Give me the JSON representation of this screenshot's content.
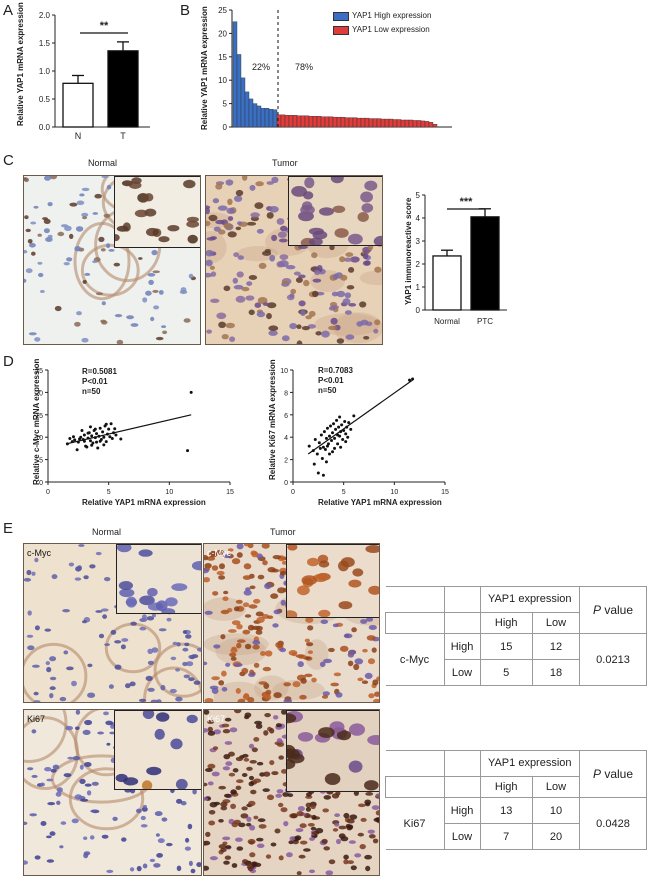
{
  "panels": {
    "A": "A",
    "B": "B",
    "C": "C",
    "D": "D",
    "E": "E"
  },
  "panelA": {
    "ylabel": "Relative YAP1 mRNA expression",
    "sig": "**",
    "chart_data": {
      "type": "bar",
      "categories": [
        "N",
        "T"
      ],
      "values": [
        0.78,
        1.36
      ],
      "errors": [
        0.14,
        0.16
      ],
      "colors": [
        "#ffffff",
        "#000000"
      ],
      "ylim": [
        0,
        2.0
      ],
      "yticks": [
        "0.0",
        "0.5",
        "1.0",
        "1.5",
        "2.0"
      ]
    }
  },
  "panelB": {
    "ylabel": "Relative YAP1 mRNA expression",
    "pct_high": "22%",
    "pct_low": "78%",
    "legend_high": "YAP1 High expression",
    "legend_low": "YAP1 Low expression",
    "high_color": "#3a6fc4",
    "low_color": "#e03c3c",
    "chart_data": {
      "type": "bar",
      "ylim": [
        0,
        25
      ],
      "yticks": [
        "0",
        "5",
        "10",
        "15",
        "20",
        "25"
      ],
      "high_values": [
        22.5,
        15.5,
        10.5,
        7.5,
        6,
        5,
        4.5,
        4,
        4,
        3.8,
        3.7
      ],
      "low_values": [
        2.6,
        2.6,
        2.5,
        2.5,
        2.5,
        2.4,
        2.4,
        2.4,
        2.3,
        2.3,
        2.3,
        2.2,
        2.2,
        2.2,
        2.1,
        2.1,
        2.1,
        2.0,
        2.0,
        2.0,
        1.9,
        1.9,
        1.9,
        1.8,
        1.8,
        1.8,
        1.7,
        1.7,
        1.7,
        1.6,
        1.6,
        1.5,
        1.5,
        1.5,
        1.4,
        1.4,
        1.3,
        1.2,
        1.0,
        0.6
      ]
    }
  },
  "panelC": {
    "normal_label": "Normal",
    "tumor_label": "Tumor",
    "ylabel": "YAP1 immunoreactive score",
    "sig": "***",
    "chart_data": {
      "type": "bar",
      "categories": [
        "Normal",
        "PTC"
      ],
      "values": [
        2.35,
        4.05
      ],
      "errors": [
        0.25,
        0.35
      ],
      "colors": [
        "#ffffff",
        "#000000"
      ],
      "ylim": [
        0,
        5
      ],
      "yticks": [
        "0",
        "1",
        "2",
        "3",
        "4",
        "5"
      ]
    }
  },
  "panelD1": {
    "ylabel": "Relative c-Myc mRNA expression",
    "xlabel": "Relative YAP1 mRNA expression",
    "stats": [
      "R=0.5081",
      "P<0.01",
      "n=50"
    ],
    "chart_data": {
      "type": "scatter",
      "xlim": [
        0,
        15
      ],
      "ylim": [
        0,
        25
      ],
      "xticks": [
        "0",
        "5",
        "10",
        "15"
      ],
      "yticks": [
        "0",
        "5",
        "10",
        "15",
        "20",
        "25"
      ],
      "fit": [
        [
          1.5,
          8.5
        ],
        [
          11.8,
          15
        ]
      ],
      "points": [
        [
          1.6,
          8.5
        ],
        [
          2,
          9
        ],
        [
          2.2,
          9.4
        ],
        [
          2.5,
          8.9
        ],
        [
          2.7,
          10
        ],
        [
          2.9,
          9.5
        ],
        [
          3,
          10.5
        ],
        [
          3.1,
          8
        ],
        [
          3.3,
          9.8
        ],
        [
          3.4,
          11
        ],
        [
          3.5,
          9.2
        ],
        [
          3.6,
          10.3
        ],
        [
          3.7,
          8.7
        ],
        [
          3.8,
          11.5
        ],
        [
          3.9,
          9.9
        ],
        [
          4,
          10.8
        ],
        [
          4.1,
          7.6
        ],
        [
          4.2,
          10.2
        ],
        [
          4.3,
          12
        ],
        [
          4.4,
          9.5
        ],
        [
          4.5,
          11.2
        ],
        [
          4.6,
          10
        ],
        [
          4.7,
          12.5
        ],
        [
          4.8,
          9
        ],
        [
          4.9,
          10.7
        ],
        [
          5,
          11.8
        ],
        [
          5.1,
          10.1
        ],
        [
          5.2,
          13
        ],
        [
          5.3,
          9.7
        ],
        [
          5.4,
          11
        ],
        [
          2.4,
          7.2
        ],
        [
          3.2,
          7.8
        ],
        [
          2.8,
          11.5
        ],
        [
          3.5,
          12.3
        ],
        [
          4.6,
          8.3
        ],
        [
          5.6,
          10.5
        ],
        [
          6,
          9.6
        ],
        [
          3.3,
          10.9
        ],
        [
          3.9,
          11.8
        ],
        [
          4.3,
          9.1
        ],
        [
          2.1,
          10.1
        ],
        [
          1.8,
          9.7
        ],
        [
          3.6,
          8.2
        ],
        [
          4.8,
          12.9
        ],
        [
          5.5,
          11.9
        ],
        [
          2.6,
          9.6
        ],
        [
          4,
          8.9
        ],
        [
          11.5,
          7
        ],
        [
          11.8,
          20
        ],
        [
          3,
          9.1
        ]
      ]
    }
  },
  "panelD2": {
    "ylabel": "Relative Ki67 mRNA expression",
    "xlabel": "Relative YAP1 mRNA expression",
    "stats": [
      "R=0.7083",
      "P<0.01",
      "n=50"
    ],
    "chart_data": {
      "type": "scatter",
      "xlim": [
        0,
        15
      ],
      "ylim": [
        0,
        10
      ],
      "xticks": [
        "0",
        "5",
        "10",
        "15"
      ],
      "yticks": [
        "0",
        "2",
        "4",
        "6",
        "8",
        "10"
      ],
      "fit": [
        [
          1.5,
          2.5
        ],
        [
          11.8,
          9.1
        ]
      ],
      "points": [
        [
          1.6,
          3.2
        ],
        [
          2,
          2.8
        ],
        [
          2.2,
          3.8
        ],
        [
          2.4,
          2.5
        ],
        [
          2.6,
          3.5
        ],
        [
          2.8,
          4.2
        ],
        [
          3,
          3.1
        ],
        [
          3.1,
          4.5
        ],
        [
          3.2,
          2.9
        ],
        [
          3.3,
          3.9
        ],
        [
          3.4,
          4.8
        ],
        [
          3.5,
          3.4
        ],
        [
          3.6,
          4.1
        ],
        [
          3.7,
          5
        ],
        [
          3.8,
          3.7
        ],
        [
          3.9,
          4.4
        ],
        [
          4,
          5.2
        ],
        [
          4.1,
          3.9
        ],
        [
          4.2,
          4.7
        ],
        [
          4.3,
          5.5
        ],
        [
          4.4,
          4.2
        ],
        [
          4.5,
          4.9
        ],
        [
          4.6,
          5.8
        ],
        [
          4.7,
          4.5
        ],
        [
          4.8,
          5.1
        ],
        [
          4.9,
          3.8
        ],
        [
          5,
          4.6
        ],
        [
          5.1,
          5.4
        ],
        [
          5.2,
          4.3
        ],
        [
          5.3,
          4.9
        ],
        [
          5.5,
          5.3
        ],
        [
          5.7,
          4.7
        ],
        [
          6,
          5.9
        ],
        [
          2.5,
          0.8
        ],
        [
          3,
          0.6
        ],
        [
          2.1,
          1.6
        ],
        [
          2.9,
          2.1
        ],
        [
          3.3,
          1.8
        ],
        [
          3.6,
          2.5
        ],
        [
          4.1,
          3
        ],
        [
          4.4,
          3.4
        ],
        [
          4.7,
          3.1
        ],
        [
          5.4,
          4
        ],
        [
          2.7,
          3
        ],
        [
          3.9,
          2.7
        ],
        [
          4.6,
          4.1
        ],
        [
          5.2,
          3.6
        ],
        [
          3.4,
          3.2
        ],
        [
          11.5,
          9.1
        ],
        [
          11.8,
          9.2
        ]
      ]
    }
  },
  "panelE": {
    "normal_label": "Normal",
    "tumor_label": "Tumor",
    "cmyc": "c-Myc",
    "ki67": "Ki67",
    "table1": {
      "header": "YAP1 expression",
      "high": "High",
      "low": "Low",
      "pvalue_p": "P",
      "pvalue_rest": " value",
      "marker": "c-Myc",
      "rows": [
        {
          "label": "High",
          "vals": [
            "15",
            "12"
          ]
        },
        {
          "label": "Low",
          "vals": [
            "5",
            "18"
          ]
        }
      ],
      "p": "0.0213"
    },
    "table2": {
      "header": "YAP1 expression",
      "high": "High",
      "low": "Low",
      "pvalue_p": "P",
      "pvalue_rest": " value",
      "marker": "Ki67",
      "rows": [
        {
          "label": "High",
          "vals": [
            "13",
            "10"
          ]
        },
        {
          "label": "Low",
          "vals": [
            "7",
            "20"
          ]
        }
      ],
      "p": "0.0428"
    }
  }
}
